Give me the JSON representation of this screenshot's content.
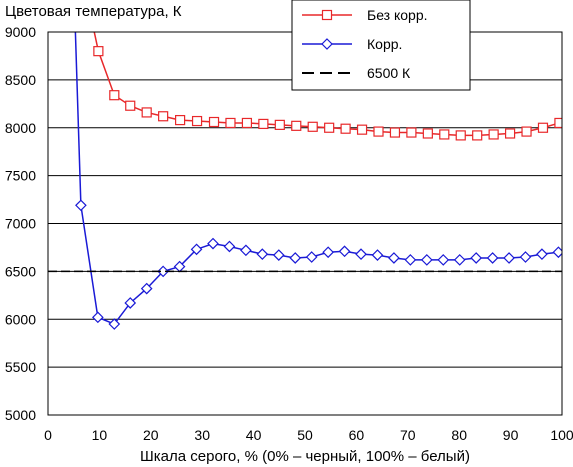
{
  "chart_data": {
    "type": "line",
    "title": "Цветовая температура, К",
    "xlabel": "Шкала серого, % (0% – черный, 100% – белый)",
    "ylabel": "",
    "xlim": [
      0,
      100
    ],
    "ylim": [
      5000,
      9000
    ],
    "x_ticks": [
      "0",
      "10",
      "20",
      "30",
      "40",
      "50",
      "60",
      "70",
      "80",
      "90",
      "100"
    ],
    "y_ticks": [
      "5000",
      "5500",
      "6000",
      "6500",
      "7000",
      "7500",
      "8000",
      "8500",
      "9000"
    ],
    "grid": "horizontal",
    "legend_position": "top-right",
    "series": [
      {
        "name": "Без корр.",
        "color": "#e8282a",
        "marker": "square",
        "points": [
          [
            8.8,
            9050
          ],
          [
            9.8,
            8800
          ],
          [
            12.9,
            8340
          ],
          [
            16.0,
            8230
          ],
          [
            19.2,
            8160
          ],
          [
            22.4,
            8120
          ],
          [
            25.7,
            8080
          ],
          [
            29.0,
            8070
          ],
          [
            32.3,
            8060
          ],
          [
            35.5,
            8050
          ],
          [
            38.7,
            8050
          ],
          [
            41.9,
            8040
          ],
          [
            45.1,
            8030
          ],
          [
            48.3,
            8020
          ],
          [
            51.5,
            8010
          ],
          [
            54.7,
            8000
          ],
          [
            57.9,
            7990
          ],
          [
            61.1,
            7980
          ],
          [
            64.3,
            7960
          ],
          [
            67.5,
            7950
          ],
          [
            70.7,
            7950
          ],
          [
            73.9,
            7940
          ],
          [
            77.1,
            7930
          ],
          [
            80.3,
            7920
          ],
          [
            83.5,
            7920
          ],
          [
            86.7,
            7930
          ],
          [
            89.9,
            7940
          ],
          [
            93.1,
            7960
          ],
          [
            96.3,
            8000
          ],
          [
            99.5,
            8050
          ]
        ]
      },
      {
        "name": "Корр.",
        "color": "#1a1ad6",
        "marker": "diamond",
        "points": [
          [
            5.3,
            9050
          ],
          [
            6.4,
            7190
          ],
          [
            9.7,
            6020
          ],
          [
            12.9,
            5950
          ],
          [
            16.0,
            6170
          ],
          [
            19.2,
            6320
          ],
          [
            22.4,
            6500
          ],
          [
            25.6,
            6550
          ],
          [
            28.9,
            6730
          ],
          [
            32.1,
            6790
          ],
          [
            35.3,
            6760
          ],
          [
            38.5,
            6720
          ],
          [
            41.7,
            6680
          ],
          [
            44.9,
            6670
          ],
          [
            48.1,
            6640
          ],
          [
            51.3,
            6650
          ],
          [
            54.5,
            6700
          ],
          [
            57.7,
            6710
          ],
          [
            60.9,
            6680
          ],
          [
            64.1,
            6670
          ],
          [
            67.3,
            6640
          ],
          [
            70.5,
            6620
          ],
          [
            73.7,
            6620
          ],
          [
            76.9,
            6620
          ],
          [
            80.1,
            6620
          ],
          [
            83.3,
            6640
          ],
          [
            86.5,
            6640
          ],
          [
            89.7,
            6640
          ],
          [
            92.9,
            6650
          ],
          [
            96.1,
            6680
          ],
          [
            99.3,
            6700
          ]
        ]
      },
      {
        "name": "6500 К",
        "color": "#000000",
        "marker": "none",
        "dashed": true,
        "points": [
          [
            0,
            6500
          ],
          [
            100,
            6500
          ]
        ]
      }
    ]
  }
}
